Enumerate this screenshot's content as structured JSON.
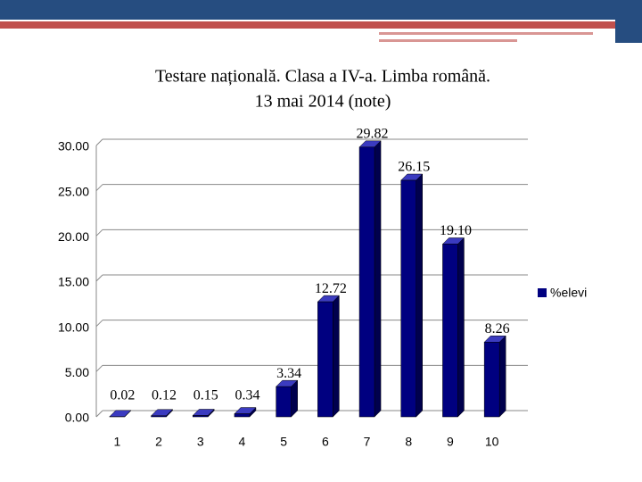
{
  "chart_data": {
    "type": "bar",
    "title": [
      "Testare națională. Clasa a IV-a. Limba română.",
      "13 mai 2014 (note)"
    ],
    "categories": [
      "1",
      "2",
      "3",
      "4",
      "5",
      "6",
      "7",
      "8",
      "9",
      "10"
    ],
    "series": [
      {
        "name": "%elevi",
        "color": "#000080",
        "values": [
          0.02,
          0.12,
          0.15,
          0.34,
          3.34,
          12.72,
          29.82,
          26.15,
          19.1,
          8.26
        ],
        "value_labels": [
          "0.02",
          "0.12",
          "0.15",
          "0.34",
          "3.34",
          "12.72",
          "29.82",
          "26.15",
          "19.10",
          "8.26"
        ]
      }
    ],
    "ylim": [
      0,
      30
    ],
    "yticks": [
      {
        "value": 0,
        "label": "0.00"
      },
      {
        "value": 5,
        "label": "5.00"
      },
      {
        "value": 10,
        "label": "10.00"
      },
      {
        "value": 15,
        "label": "15.00"
      },
      {
        "value": 20,
        "label": "20.00"
      },
      {
        "value": 25,
        "label": "25.00"
      },
      {
        "value": 30,
        "label": "30.00"
      }
    ],
    "grid": true,
    "legend": "right"
  }
}
